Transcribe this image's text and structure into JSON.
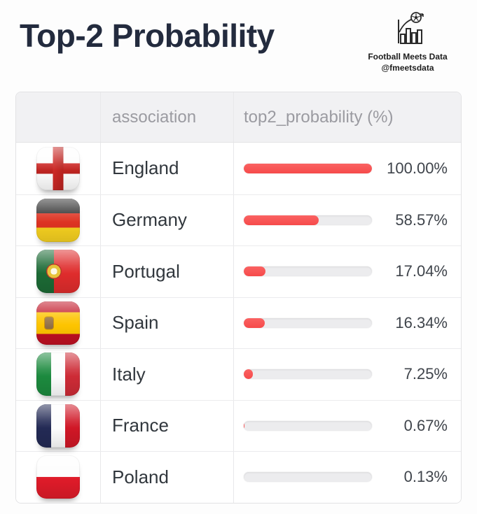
{
  "header": {
    "title": "Top-2 Probability",
    "brand": {
      "name": "Football Meets Data",
      "handle": "@fmeetsdata",
      "logo_icon": "bar-chart-football-icon"
    }
  },
  "table": {
    "columns": [
      "",
      "association",
      "top2_probability (%)"
    ],
    "rows": [
      {
        "flag": "england",
        "flag_icon": "england-flag-icon",
        "association": "England",
        "value": 100.0,
        "display": "100.00%"
      },
      {
        "flag": "germany",
        "flag_icon": "germany-flag-icon",
        "association": "Germany",
        "value": 58.57,
        "display": "58.57%"
      },
      {
        "flag": "portugal",
        "flag_icon": "portugal-flag-icon",
        "association": "Portugal",
        "value": 17.04,
        "display": "17.04%"
      },
      {
        "flag": "spain",
        "flag_icon": "spain-flag-icon",
        "association": "Spain",
        "value": 16.34,
        "display": "16.34%"
      },
      {
        "flag": "italy",
        "flag_icon": "italy-flag-icon",
        "association": "Italy",
        "value": 7.25,
        "display": "7.25%"
      },
      {
        "flag": "france",
        "flag_icon": "france-flag-icon",
        "association": "France",
        "value": 0.67,
        "display": "0.67%"
      },
      {
        "flag": "poland",
        "flag_icon": "poland-flag-icon",
        "association": "Poland",
        "value": 0.13,
        "display": "0.13%"
      }
    ]
  },
  "colors": {
    "bar_fill": "#f75454",
    "bar_track": "#ececee",
    "title_text": "#232b3e",
    "header_text": "#9b9ba1",
    "row_text": "#31373d",
    "table_header_bg": "#f1f1f3",
    "table_border": "#e2e2e4"
  },
  "chart_data": {
    "type": "bar",
    "orientation": "horizontal",
    "categories": [
      "England",
      "Germany",
      "Portugal",
      "Spain",
      "Italy",
      "France",
      "Poland"
    ],
    "values": [
      100.0,
      58.57,
      17.04,
      16.34,
      7.25,
      0.67,
      0.13
    ],
    "value_labels": [
      "100.00%",
      "58.57%",
      "17.04%",
      "16.34%",
      "7.25%",
      "0.67%",
      "0.13%"
    ],
    "title": "Top-2 Probability",
    "xlabel": "top2_probability (%)",
    "ylabel": "association",
    "xlim": [
      0,
      100
    ],
    "grid": false,
    "legend": false
  }
}
